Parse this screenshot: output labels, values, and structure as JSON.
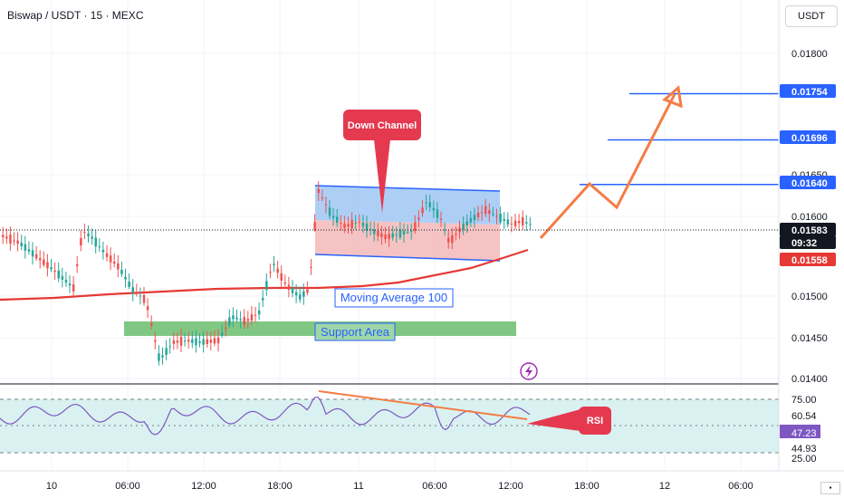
{
  "header": {
    "title": "Biswap / USDT · 15 · MEXC",
    "currency_button": "USDT"
  },
  "chart_data": {
    "type": "candlestick",
    "symbol": "Biswap / USDT",
    "interval": "15",
    "exchange": "MEXC",
    "y_ticks": [
      "0.01800",
      "0.01650",
      "0.01600",
      "0.01500",
      "0.01450",
      "0.01400"
    ],
    "x_ticks": [
      "10",
      "06:00",
      "12:00",
      "18:00",
      "11",
      "06:00",
      "12:00",
      "18:00",
      "12",
      "06:00"
    ],
    "price_tags": [
      {
        "label": "0.01754",
        "color": "#2962ff"
      },
      {
        "label": "0.01696",
        "color": "#2962ff"
      },
      {
        "label": "0.01640",
        "color": "#2962ff"
      },
      {
        "label": "0.01583",
        "color": "#131722"
      },
      {
        "label": "09:32",
        "color": "#131722"
      },
      {
        "label": "0.01558",
        "color": "#e53935"
      }
    ],
    "rsi_ticks": [
      "75.00",
      "60.54",
      "47.23",
      "44.93",
      "25.00"
    ],
    "annotations": {
      "down_channel": "Down Channel",
      "moving_average": "Moving Average 100",
      "support_area": "Support Area",
      "rsi": "RSI"
    },
    "levels": [
      0.01754,
      0.01696,
      0.0164
    ],
    "last_price": 0.01583,
    "ma100": 0.01558
  },
  "colors": {
    "bull": "#26a69a",
    "bear": "#ef5350",
    "ma": "#e53935",
    "channel": "#2962ff",
    "arrow": "#f57c45",
    "support": "#4caf50",
    "rsi_line": "#7e57c2",
    "rsi_band": "#d9f2f1"
  }
}
